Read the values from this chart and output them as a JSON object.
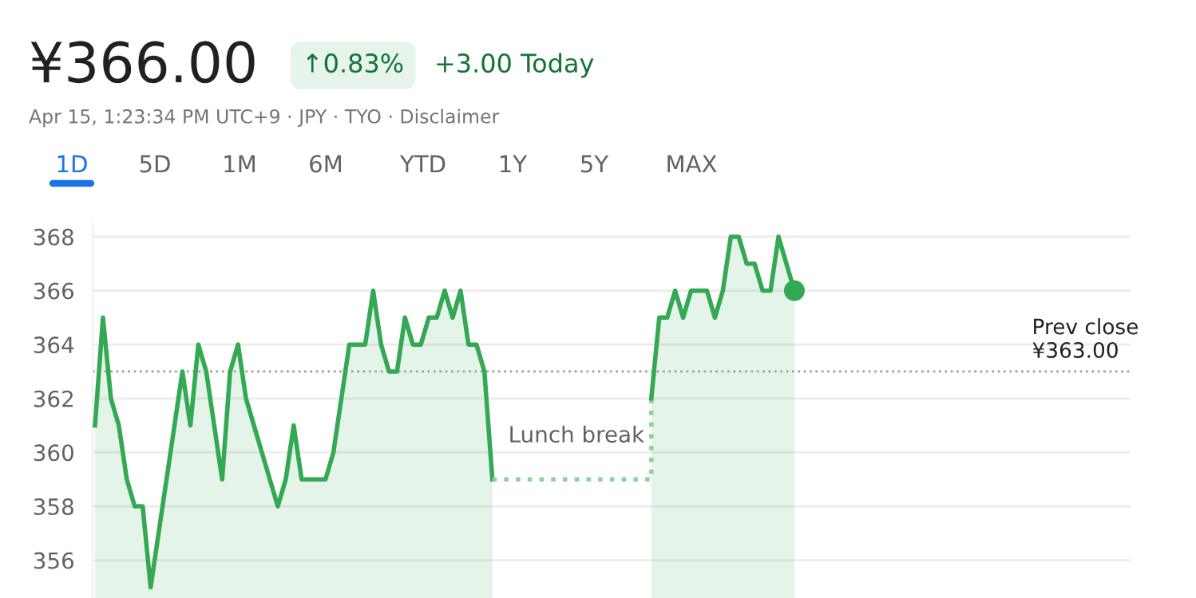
{
  "chart_data": {
    "type": "area",
    "title": "¥366.00",
    "subtitle": "Apr 15, 1:23:34 PM UTC+9 · JPY · TYO · Disclaimer",
    "annotations": [
      "↑0.83%",
      "+3.00 Today",
      "1D",
      "5D",
      "1M",
      "6M",
      "YTD",
      "1Y",
      "5Y",
      "MAX",
      "Lunch break"
    ],
    "categories": [
      null,
      null,
      null,
      null,
      null,
      null,
      null,
      null,
      null,
      null,
      null,
      null,
      null,
      null,
      null,
      null,
      null,
      null,
      null,
      null,
      null,
      null,
      null,
      null,
      null,
      null,
      null,
      null,
      null,
      null,
      null,
      null,
      null,
      null,
      null,
      null,
      null,
      null,
      null,
      null,
      null,
      null,
      null,
      null,
      null,
      null,
      null,
      null,
      null,
      null,
      null,
      null,
      null,
      null,
      null,
      null,
      null,
      null,
      null,
      null,
      null,
      null,
      null,
      null,
      null,
      null,
      null,
      null,
      null,
      null,
      null,
      null,
      null,
      null,
      null,
      null,
      null,
      null,
      null,
      null,
      null,
      null,
      null,
      null,
      null,
      null,
      null,
      null,
      null,
      null,
      null,
      null,
      null,
      null,
      null,
      null,
      null,
      null,
      null,
      null,
      null,
      null,
      null,
      null,
      null,
      null,
      null,
      null,
      null,
      null,
      null,
      null,
      null,
      null,
      null,
      null,
      null,
      null,
      null,
      null,
      null,
      null,
      null,
      null,
      null,
      null,
      null,
      null,
      null,
      null,
      null
    ],
    "series": [
      {
        "color": "#34a853",
        "values": [
          361,
          365,
          362,
          361,
          359,
          358,
          358,
          355,
          357,
          359,
          361,
          363,
          361,
          364,
          363,
          361,
          359,
          363,
          364,
          362,
          361,
          360,
          359,
          358,
          359,
          361,
          359,
          359,
          359,
          359,
          360,
          362,
          364,
          364,
          364,
          366,
          364,
          363,
          363,
          365,
          364,
          364,
          365,
          365,
          366,
          365,
          366,
          364,
          364,
          363,
          359,
          null,
          null,
          null,
          null,
          null,
          null,
          null,
          null,
          null,
          null,
          null,
          null,
          null,
          null,
          null,
          null,
          null,
          null,
          null,
          null,
          null,
          null,
          null,
          null,
          null,
          null,
          null,
          null,
          null,
          null,
          null,
          null,
          null,
          null,
          null,
          null,
          null,
          null,
          null,
          null,
          null,
          null,
          null,
          null,
          null,
          null,
          null,
          null,
          null,
          null,
          null,
          null,
          null,
          null,
          null,
          null,
          null,
          null,
          null,
          null,
          null,
          null,
          null,
          null,
          null,
          null,
          null,
          null,
          null,
          null,
          null,
          null,
          null,
          null,
          null,
          null,
          null,
          null,
          null,
          null
        ]
      },
      {
        "type": "step",
        "color": "#8fd19e",
        "line_style": "dotted",
        "values": [
          null,
          null,
          null,
          null,
          null,
          null,
          null,
          null,
          null,
          null,
          null,
          null,
          null,
          null,
          null,
          null,
          null,
          null,
          null,
          null,
          null,
          null,
          null,
          null,
          null,
          null,
          null,
          null,
          null,
          null,
          null,
          null,
          null,
          null,
          null,
          null,
          null,
          null,
          null,
          null,
          null,
          null,
          null,
          null,
          null,
          null,
          null,
          null,
          null,
          null,
          359,
          null,
          null,
          null,
          null,
          null,
          null,
          null,
          null,
          null,
          null,
          null,
          null,
          null,
          null,
          null,
          null,
          null,
          null,
          null,
          362,
          null,
          null,
          null,
          null,
          null,
          null,
          null,
          null,
          null,
          null,
          null,
          null,
          null,
          null,
          null,
          null,
          null,
          null,
          null,
          null,
          null,
          null,
          null,
          null,
          null,
          null,
          null,
          null,
          null,
          null,
          null,
          null,
          null,
          null,
          null,
          null,
          null,
          null,
          null,
          null,
          null,
          null,
          null,
          null,
          null,
          null,
          null,
          null,
          null,
          null,
          null,
          null,
          null,
          null,
          null,
          null,
          null,
          null,
          null,
          null
        ]
      },
      {
        "color": "#34a853",
        "values": [
          null,
          null,
          null,
          null,
          null,
          null,
          null,
          null,
          null,
          null,
          null,
          null,
          null,
          null,
          null,
          null,
          null,
          null,
          null,
          null,
          null,
          null,
          null,
          null,
          null,
          null,
          null,
          null,
          null,
          null,
          null,
          null,
          null,
          null,
          null,
          null,
          null,
          null,
          null,
          null,
          null,
          null,
          null,
          null,
          null,
          null,
          null,
          null,
          null,
          null,
          null,
          null,
          null,
          null,
          null,
          null,
          null,
          null,
          null,
          null,
          null,
          null,
          null,
          null,
          null,
          null,
          null,
          null,
          null,
          null,
          362,
          365,
          365,
          366,
          365,
          366,
          366,
          366,
          365,
          366,
          368,
          368,
          367,
          367,
          366,
          366,
          368,
          367,
          366,
          null,
          null,
          null,
          null,
          null,
          null,
          null,
          null,
          null,
          null,
          null,
          null,
          null,
          null,
          null,
          null,
          null,
          null,
          null,
          null,
          null,
          null,
          null,
          null,
          null,
          null,
          null,
          null,
          null,
          null,
          null,
          null,
          null,
          null,
          null,
          null,
          null,
          null,
          null,
          null,
          null,
          null
        ]
      },
      {
        "type": "scatter",
        "color": "#34a853",
        "marker": "circle",
        "values": [
          null,
          null,
          null,
          null,
          null,
          null,
          null,
          null,
          null,
          null,
          null,
          null,
          null,
          null,
          null,
          null,
          null,
          null,
          null,
          null,
          null,
          null,
          null,
          null,
          null,
          null,
          null,
          null,
          null,
          null,
          null,
          null,
          null,
          null,
          null,
          null,
          null,
          null,
          null,
          null,
          null,
          null,
          null,
          null,
          null,
          null,
          null,
          null,
          null,
          null,
          null,
          null,
          null,
          null,
          null,
          null,
          null,
          null,
          null,
          null,
          null,
          null,
          null,
          null,
          null,
          null,
          null,
          null,
          null,
          null,
          null,
          null,
          null,
          null,
          null,
          null,
          null,
          null,
          null,
          null,
          null,
          null,
          null,
          null,
          null,
          null,
          null,
          null,
          366,
          null,
          null,
          null,
          null,
          null,
          null,
          null,
          null,
          null,
          null,
          null,
          null,
          null,
          null,
          null,
          null,
          null,
          null,
          null,
          null,
          null,
          null,
          null,
          null,
          null,
          null,
          null,
          null,
          null,
          null,
          null,
          null,
          null,
          null,
          null,
          null,
          null,
          null,
          null,
          null,
          null,
          null
        ]
      }
    ],
    "ylim": [
      354.6,
      368.5
    ],
    "yticks": [
      356,
      358,
      360,
      362,
      364,
      366,
      368
    ],
    "grid": "y",
    "tick_labels": "y",
    "ref_lines": [
      {
        "axis": "y",
        "value": 363,
        "label": "Prev close\n¥363.00",
        "color": "#9e9e9e",
        "line_style": "dotted"
      }
    ]
  }
}
